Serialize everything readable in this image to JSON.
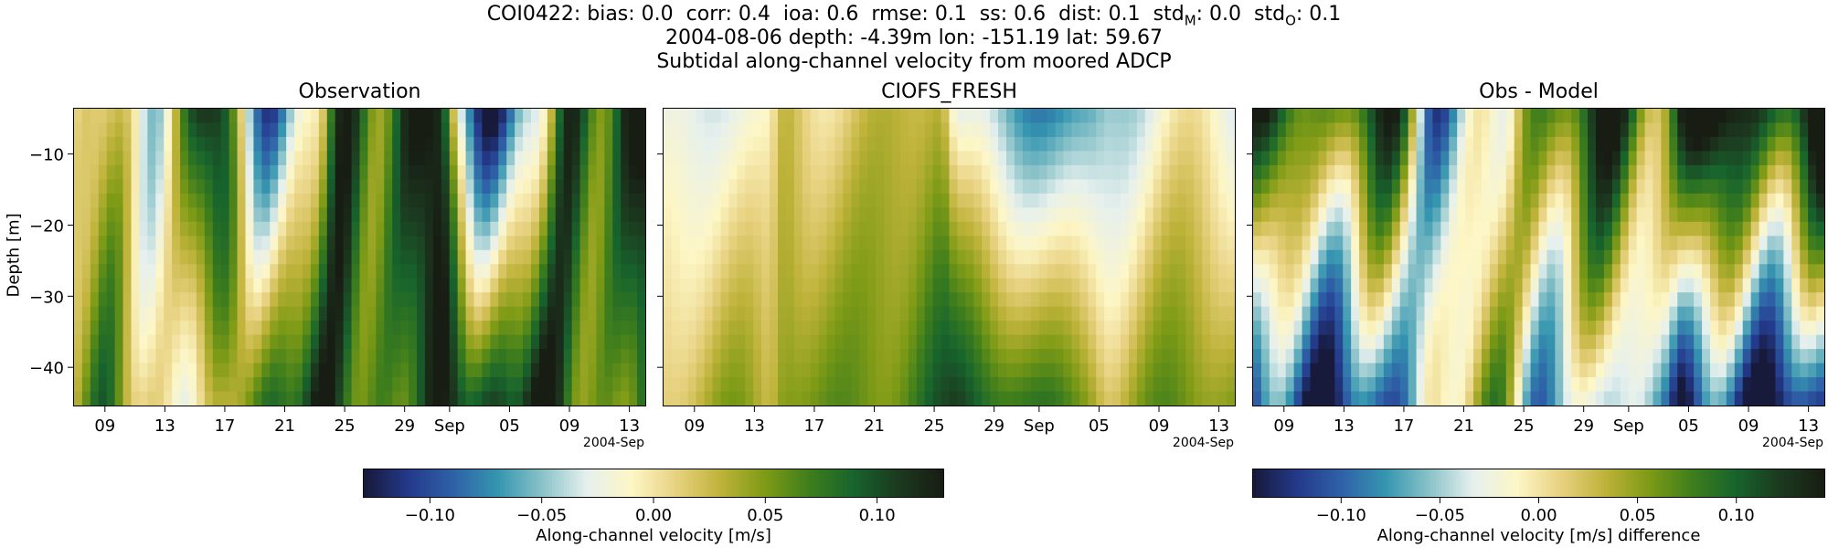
{
  "title": {
    "line1": "COI0422: bias: 0.0  corr: 0.4  ioa: 0.6  rmse: 0.1  ss: 0.6  dist: 0.1  std",
    "line1_sub_m": "M",
    "line1_mid": ": 0.0  std",
    "line1_sub_o": "O",
    "line1_end": ": 0.1",
    "line2": "2004-08-06 depth: -4.39m lon: -151.19 lat: 59.67",
    "line3": "Subtidal along-channel velocity from moored ADCP"
  },
  "colors": {
    "cmap": [
      "#171a3b",
      "#243a8c",
      "#2f62a8",
      "#3596b0",
      "#8ac3c9",
      "#e6f0ee",
      "#fdf6c6",
      "#e8d281",
      "#bfb33a",
      "#7f9b16",
      "#3f7e1c",
      "#17642d",
      "#1c3a1f",
      "#181d14"
    ]
  },
  "chart_data": [
    {
      "type": "heatmap",
      "title": "Observation",
      "ylabel": "Depth [m]",
      "ylim": [
        -45.5,
        -3.5
      ],
      "yticks": [
        -10,
        -20,
        -30,
        -40
      ],
      "xticks": [
        "09",
        "13",
        "17",
        "21",
        "25",
        "29",
        "Sep",
        "05",
        "09",
        "13"
      ],
      "x_offset_label": "2004-Sep",
      "x_range_days": [
        "2004-08-07",
        "2004-09-14"
      ],
      "depth_rows": [
        -4,
        -6,
        -8,
        -10,
        -12,
        -14,
        -16,
        -18,
        -20,
        -22,
        -24,
        -26,
        -28,
        -30,
        -32,
        -34,
        -36,
        -38,
        -40,
        -42,
        -44
      ],
      "approx_features": [
        {
          "date": "2004-08-13",
          "surface_value": -0.02,
          "bottom_value": 0.05
        },
        {
          "date": "2004-08-15",
          "surface_value": 0.12,
          "bottom_value": -0.05
        },
        {
          "date": "2004-08-20",
          "surface_value": -0.05,
          "bottom_value": 0.1
        },
        {
          "date": "2004-08-28",
          "surface_value": 0.11,
          "bottom_value": 0.08
        },
        {
          "date": "2004-09-05",
          "surface_value": -0.08,
          "bottom_value": 0.12
        },
        {
          "date": "2004-09-11",
          "surface_value": 0.12,
          "bottom_value": 0.07
        }
      ]
    },
    {
      "type": "heatmap",
      "title": "CIOFS_FRESH",
      "ylim": [
        -45.5,
        -3.5
      ],
      "xticks": [
        "09",
        "13",
        "17",
        "21",
        "25",
        "29",
        "Sep",
        "05",
        "09",
        "13"
      ],
      "x_offset_label": "2004-Sep",
      "x_range_days": [
        "2004-08-07",
        "2004-09-14"
      ],
      "approx_features": [
        {
          "date": "2004-08-09",
          "surface_value": -0.04,
          "bottom_value": 0.02
        },
        {
          "date": "2004-08-20",
          "surface_value": 0.03,
          "bottom_value": 0.07
        },
        {
          "date": "2004-09-01",
          "surface_value": -0.06,
          "bottom_value": 0.08
        },
        {
          "date": "2004-09-09",
          "surface_value": -0.03,
          "bottom_value": 0.04
        }
      ]
    },
    {
      "type": "heatmap",
      "title": "Obs - Model",
      "ylim": [
        -45.5,
        -3.5
      ],
      "xticks": [
        "09",
        "13",
        "17",
        "21",
        "25",
        "29",
        "Sep",
        "05",
        "09",
        "13"
      ],
      "x_offset_label": "2004-Sep",
      "x_range_days": [
        "2004-08-07",
        "2004-09-14"
      ],
      "approx_features": [
        {
          "date": "2004-08-15",
          "surface_value": 0.09,
          "bottom_value": -0.12
        },
        {
          "date": "2004-08-21",
          "surface_value": -0.06,
          "bottom_value": 0.03
        },
        {
          "date": "2004-08-28",
          "surface_value": 0.1,
          "bottom_value": -0.05
        },
        {
          "date": "2004-09-11",
          "surface_value": 0.14,
          "bottom_value": -0.13
        }
      ]
    }
  ],
  "colorbars": [
    {
      "label": "Along-channel velocity [m/s]",
      "range": [
        -0.13,
        0.13
      ],
      "ticks": [
        "−0.10",
        "−0.05",
        "0.00",
        "0.05",
        "0.10"
      ],
      "tick_values": [
        -0.1,
        -0.05,
        0.0,
        0.05,
        0.1
      ]
    },
    {
      "label": "Along-channel velocity [m/s] difference",
      "range": [
        -0.145,
        0.145
      ],
      "ticks": [
        "−0.10",
        "−0.05",
        "0.00",
        "0.05",
        "0.10"
      ],
      "tick_values": [
        -0.1,
        -0.05,
        0.0,
        0.05,
        0.1
      ]
    }
  ]
}
